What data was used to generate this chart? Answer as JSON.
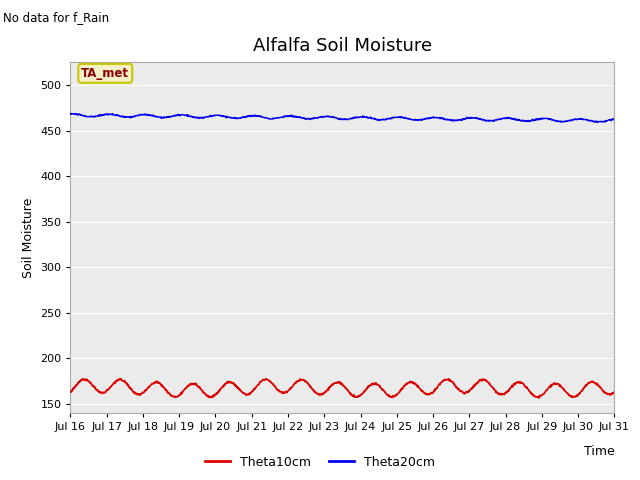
{
  "title": "Alfalfa Soil Moisture",
  "no_data_text": "No data for f_Rain",
  "ta_met_label": "TA_met",
  "xlabel": "Time",
  "ylabel": "Soil Moisture",
  "ylim": [
    140,
    525
  ],
  "yticks": [
    150,
    200,
    250,
    300,
    350,
    400,
    450,
    500
  ],
  "x_tick_labels": [
    "Jul 16",
    "Jul 17",
    "Jul 18",
    "Jul 19",
    "Jul 20",
    "Jul 21",
    "Jul 22",
    "Jul 23",
    "Jul 24",
    "Jul 25",
    "Jul 26",
    "Jul 27",
    "Jul 28",
    "Jul 29",
    "Jul 30",
    "Jul 31"
  ],
  "blue_line_color": "#0000ee",
  "red_line_color": "#dd0000",
  "background_color": "#e8e8e8",
  "plot_bg_color": "#ebebeb",
  "legend_labels": [
    "Theta10cm",
    "Theta20cm"
  ],
  "title_fontsize": 13,
  "axis_label_fontsize": 9,
  "tick_label_fontsize": 8,
  "tamet_bg": "#f5f0c8",
  "tamet_edge": "#c8c800",
  "tamet_text": "#8b0000"
}
